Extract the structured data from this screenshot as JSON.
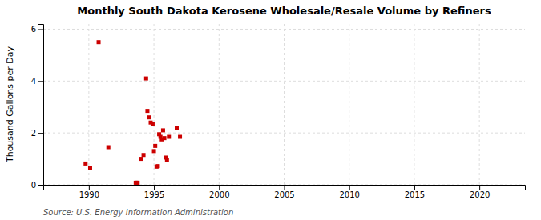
{
  "chart_data": {
    "type": "scatter",
    "title": "Monthly South Dakota Kerosene Wholesale/Resale Volume by Refiners",
    "ylabel": "Thousand Gallons per Day",
    "source": "Source: U.S. Energy Information Administration",
    "color": "#cc0000",
    "marker": "square",
    "grid": true,
    "xlim": [
      1986.5,
      2023.5
    ],
    "ylim": [
      0,
      6.2
    ],
    "xticks": [
      1990,
      1995,
      2000,
      2005,
      2010,
      2015,
      2020
    ],
    "yticks": [
      0,
      2,
      4,
      6
    ],
    "x": [
      1989.75,
      1990.1,
      1990.75,
      1991.5,
      1993.6,
      1993.7,
      1993.75,
      1994.0,
      1994.2,
      1994.4,
      1994.5,
      1994.6,
      1994.75,
      1994.9,
      1995.0,
      1995.1,
      1995.2,
      1995.3,
      1995.4,
      1995.5,
      1995.6,
      1995.7,
      1995.8,
      1995.9,
      1996.0,
      1996.15,
      1996.75,
      1997.0
    ],
    "values": [
      0.82,
      0.65,
      5.5,
      1.45,
      0.08,
      0.08,
      0.08,
      1.0,
      1.15,
      4.1,
      2.85,
      2.6,
      2.4,
      2.35,
      1.3,
      1.5,
      0.7,
      0.72,
      1.95,
      1.85,
      1.75,
      2.1,
      1.8,
      1.05,
      0.95,
      1.85,
      2.2,
      1.85
    ]
  }
}
